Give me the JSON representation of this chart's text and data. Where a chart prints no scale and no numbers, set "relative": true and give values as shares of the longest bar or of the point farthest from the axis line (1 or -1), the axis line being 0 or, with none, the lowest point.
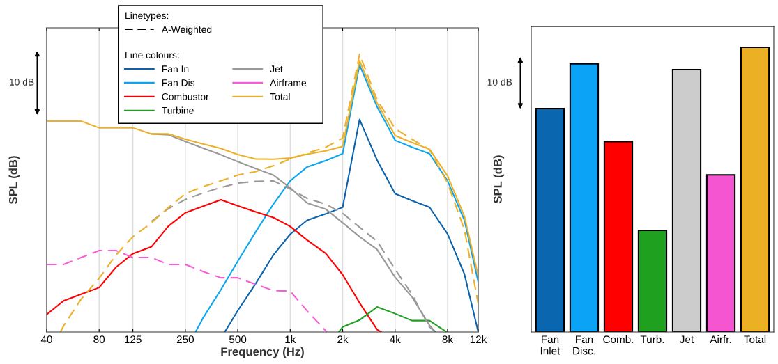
{
  "chart_data": [
    {
      "type": "line",
      "xlabel": "Frequency (Hz)",
      "ylabel": "SPL (dB)",
      "relative": true,
      "log": "x",
      "grid": "x",
      "legend": "top",
      "legend_title": "Linetypes:",
      "marker": "none",
      "xlim": [
        40,
        12000
      ],
      "xticks": [
        40,
        80,
        125,
        250,
        500,
        {
          "value": 1000,
          "label": "1k"
        },
        {
          "value": 2000,
          "label": "2k"
        },
        {
          "value": 4000,
          "label": "4k"
        },
        {
          "value": 8000,
          "label": "8k"
        },
        {
          "value": 12000,
          "label": "12k"
        }
      ],
      "annotations": [
        "10 dB",
        "A-Weighted",
        "Line colours:"
      ],
      "series": [
        {
          "name": "Fan In",
          "color": "#0b62ad",
          "line_style": "solid",
          "x": [
            421,
            500,
            630,
            800,
            1000,
            1250,
            1600,
            2000,
            2500,
            3150,
            4000,
            5000,
            6300,
            8000,
            10000,
            12000
          ],
          "values": [
            0,
            0.077,
            0.172,
            0.277,
            0.352,
            0.402,
            0.425,
            0.449,
            0.765,
            0.619,
            0.498,
            0.473,
            0.449,
            0.353,
            0.208,
            0
          ]
        },
        {
          "name": "Fan Dis",
          "color": "#0aa6f0",
          "line_style": "solid",
          "x": [
            286,
            315,
            400,
            500,
            630,
            800,
            1000,
            1250,
            1600,
            2000,
            2500,
            3150,
            4000,
            5000,
            6300,
            8000,
            10000,
            12000
          ],
          "values": [
            0,
            0.049,
            0.152,
            0.255,
            0.358,
            0.46,
            0.544,
            0.594,
            0.617,
            0.642,
            0.962,
            0.811,
            0.69,
            0.665,
            0.642,
            0.544,
            0.402,
            0.18
          ]
        },
        {
          "name": "Combustor",
          "color": "#ff0000",
          "line_style": "solid",
          "x": [
            40,
            50,
            63,
            80,
            100,
            125,
            160,
            200,
            250,
            315,
            400,
            500,
            630,
            800,
            1000,
            1250,
            1600,
            2000,
            2500,
            3150,
            3325
          ],
          "values": [
            0.063,
            0.112,
            0.136,
            0.16,
            0.233,
            0.282,
            0.307,
            0.381,
            0.429,
            0.452,
            0.476,
            0.454,
            0.433,
            0.412,
            0.38,
            0.331,
            0.283,
            0.206,
            0.105,
            0.009,
            0
          ]
        },
        {
          "name": "Turbine",
          "color": "#1fa01f",
          "line_style": "solid",
          "x": [
            1900,
            2000,
            2500,
            3150,
            4000,
            5000,
            6300,
            7900
          ],
          "values": [
            0,
            0.018,
            0.043,
            0.09,
            0.066,
            0.041,
            0.041,
            0
          ]
        },
        {
          "name": "Jet",
          "color": "#999999",
          "line_style": "solid",
          "x": [
            160,
            200,
            250,
            315,
            400,
            500,
            630,
            800,
            1000,
            1250,
            1600,
            2000,
            2500,
            3150,
            4000,
            5000,
            6300,
            6820
          ],
          "values": [
            0.713,
            0.71,
            0.686,
            0.662,
            0.638,
            0.613,
            0.589,
            0.565,
            0.519,
            0.464,
            0.442,
            0.393,
            0.343,
            0.297,
            0.197,
            0.126,
            0.024,
            0
          ]
        },
        {
          "name": "Airframe",
          "color": "#f55fd5",
          "line_style": "dashed",
          "x": [
            40,
            50,
            63,
            80,
            100,
            125,
            160,
            200,
            250,
            315,
            400,
            500,
            630,
            800,
            1000,
            1250,
            1624
          ],
          "values": [
            0.243,
            0.243,
            0.268,
            0.293,
            0.293,
            0.268,
            0.268,
            0.243,
            0.243,
            0.218,
            0.195,
            0.195,
            0.172,
            0.149,
            0.147,
            0.076,
            0
          ]
        },
        {
          "name": "Total",
          "color": "#ecb02a",
          "line_style": "solid",
          "x": [
            40,
            50,
            63,
            80,
            100,
            125,
            160,
            200,
            250,
            315,
            400,
            500,
            630,
            800,
            1000,
            1250,
            1600,
            2000,
            2500,
            3150,
            4000,
            5000,
            6300,
            8000,
            10000,
            12000
          ],
          "values": [
            0.759,
            0.759,
            0.759,
            0.735,
            0.735,
            0.735,
            0.713,
            0.713,
            0.694,
            0.677,
            0.661,
            0.639,
            0.623,
            0.622,
            0.626,
            0.64,
            0.652,
            0.668,
            0.977,
            0.824,
            0.707,
            0.682,
            0.658,
            0.562,
            0.416,
            0.201
          ]
        },
        {
          "color": "#999999",
          "line_style": "dashed",
          "x": [
            160,
            200,
            250,
            315,
            400,
            500,
            630,
            800,
            1000,
            1250,
            1600,
            2000,
            2500,
            3150,
            4000,
            5000,
            6300,
            6820
          ],
          "values": [
            0.398,
            0.444,
            0.477,
            0.5,
            0.52,
            0.536,
            0.542,
            0.544,
            0.515,
            0.481,
            0.46,
            0.427,
            0.377,
            0.327,
            0.226,
            0.135,
            0.018,
            0
          ]
        },
        {
          "color": "#ecb02a",
          "line_style": "dashed",
          "x": [
            48,
            50,
            63,
            80,
            100,
            125,
            160,
            200,
            250,
            315,
            400,
            500,
            630,
            800,
            1000,
            1250,
            1600,
            2000,
            2500,
            3150,
            4000,
            5000,
            6300,
            8000,
            10000,
            12000
          ],
          "values": [
            0,
            0.022,
            0.118,
            0.193,
            0.277,
            0.343,
            0.393,
            0.448,
            0.498,
            0.523,
            0.544,
            0.565,
            0.577,
            0.598,
            0.623,
            0.644,
            0.665,
            0.698,
            1,
            0.836,
            0.732,
            0.694,
            0.657,
            0.536,
            0.368,
            0.101
          ]
        }
      ]
    },
    {
      "type": "bar",
      "ylabel": "SPL (dB)",
      "relative": true,
      "annotations": [
        "10 dB"
      ],
      "categories": [
        "Fan\nInlet",
        "Fan\nDisc.",
        "Comb.",
        "Turb.",
        "Jet",
        "Airfr.",
        "Total"
      ],
      "values": [
        0.785,
        0.942,
        0.669,
        0.357,
        0.922,
        0.552,
        1
      ],
      "colors": [
        "#0b66b0",
        "#0aa3f5",
        "#ff0000",
        "#1fa01f",
        "#cccccc",
        "#f555d0",
        "#ebb024"
      ]
    }
  ]
}
